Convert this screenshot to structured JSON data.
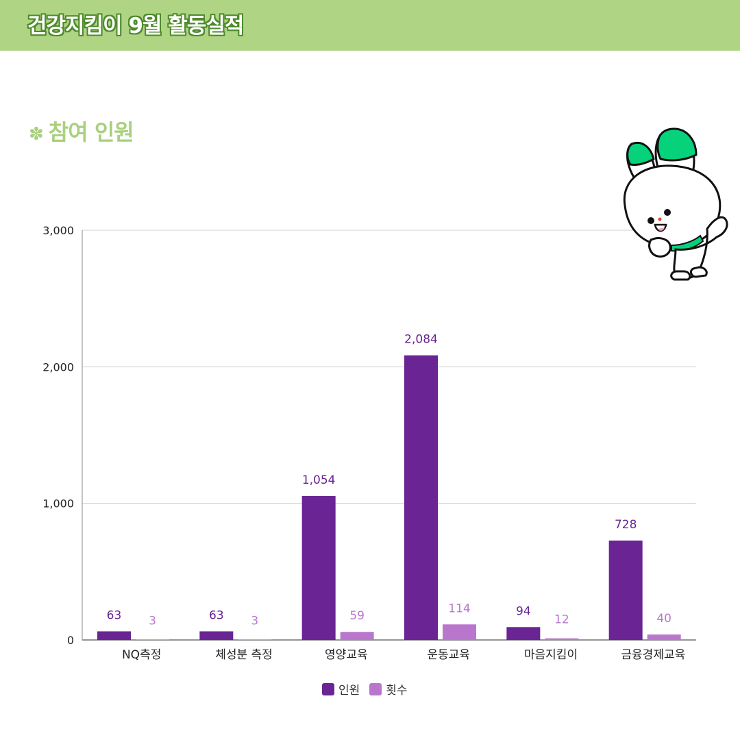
{
  "header": {
    "title": "건강지킴이 9월 활동실적"
  },
  "section": {
    "bullet": "✽",
    "title": "참여 인원"
  },
  "colors": {
    "header_bg": "#afd584",
    "series1": "#6a2494",
    "series2": "#b877cc",
    "accent_green": "#a9d07e"
  },
  "chart_data": {
    "type": "bar",
    "title": "",
    "xlabel": "",
    "ylabel": "",
    "ylim": [
      0,
      3000
    ],
    "yticks": [
      {
        "value": 0,
        "label": "0"
      },
      {
        "value": 1000,
        "label": "1,000"
      },
      {
        "value": 2000,
        "label": "2,000"
      },
      {
        "value": 3000,
        "label": "3,000"
      }
    ],
    "grid": true,
    "legend_position": "bottom",
    "categories": [
      "NQ측정",
      "체성분 측정",
      "영양교육",
      "운동교육",
      "마음지킴이",
      "금융경제교육"
    ],
    "series": [
      {
        "name": "인원",
        "values": [
          63,
          63,
          1054,
          2084,
          94,
          728
        ],
        "labels": [
          "63",
          "63",
          "1,054",
          "2,084",
          "94",
          "728"
        ],
        "color": "#6a2494"
      },
      {
        "name": "횟수",
        "values": [
          3,
          3,
          59,
          114,
          12,
          40
        ],
        "labels": [
          "3",
          "3",
          "59",
          "114",
          "12",
          "40"
        ],
        "color": "#b877cc"
      }
    ]
  },
  "mascot": {
    "icon": "rabbit-mascot-icon"
  }
}
